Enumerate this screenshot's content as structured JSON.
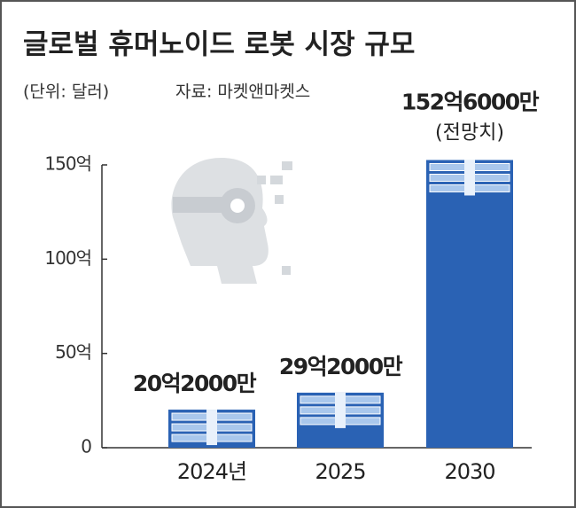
{
  "chart_data": {
    "type": "bar",
    "title": "글로벌 휴머노이드 로봇 시장 규모",
    "subtitle": "(단위: 달러)",
    "source": "자료: 마켓앤마켓스",
    "categories": [
      "2024년",
      "2025",
      "2030"
    ],
    "values": [
      20.2,
      29.2,
      152.6
    ],
    "value_labels": [
      "20억2000만",
      "29억2000만",
      "152억6000만"
    ],
    "annotation": "(전망치)",
    "color": "#2a62b4",
    "ylim": [
      0,
      150
    ],
    "yticks": [
      0,
      {
        "value": 50,
        "label": "50억"
      },
      {
        "value": 100,
        "label": "100억"
      },
      {
        "value": 150,
        "label": "150억"
      }
    ]
  }
}
